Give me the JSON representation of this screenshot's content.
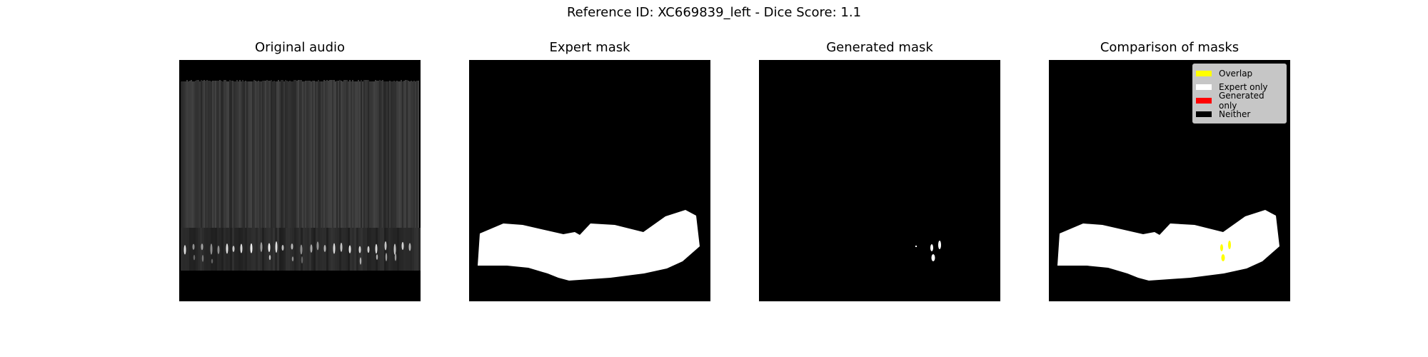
{
  "figure": {
    "suptitle": "Reference ID: XC669839_left - Dice Score: 1.1"
  },
  "chart_data": [
    {
      "type": "heatmap",
      "title": "Original audio",
      "content": "grayscale spectrogram image, axes hidden",
      "colors": {
        "background": "#000000",
        "noise": "#3a3a3a",
        "signal": "#d8d8d8"
      }
    },
    {
      "type": "heatmap",
      "title": "Expert mask",
      "content": "binary mask, white polygon on black, axes hidden",
      "colors": {
        "mask": "#ffffff",
        "background": "#000000"
      }
    },
    {
      "type": "heatmap",
      "title": "Generated mask",
      "content": "binary mask, small white blobs on black, axes hidden",
      "colors": {
        "mask": "#ffffff",
        "background": "#000000"
      }
    },
    {
      "type": "heatmap",
      "title": "Comparison of masks",
      "content": "categorical mask comparison, axes hidden",
      "legend_position": "top-right",
      "legend": [
        {
          "label": "Overlap",
          "color": "#ffff00"
        },
        {
          "label": "Expert only",
          "color": "#ffffff"
        },
        {
          "label": "Generated only",
          "color": "#ff0000"
        },
        {
          "label": "Neither",
          "color": "#000000"
        }
      ]
    }
  ]
}
